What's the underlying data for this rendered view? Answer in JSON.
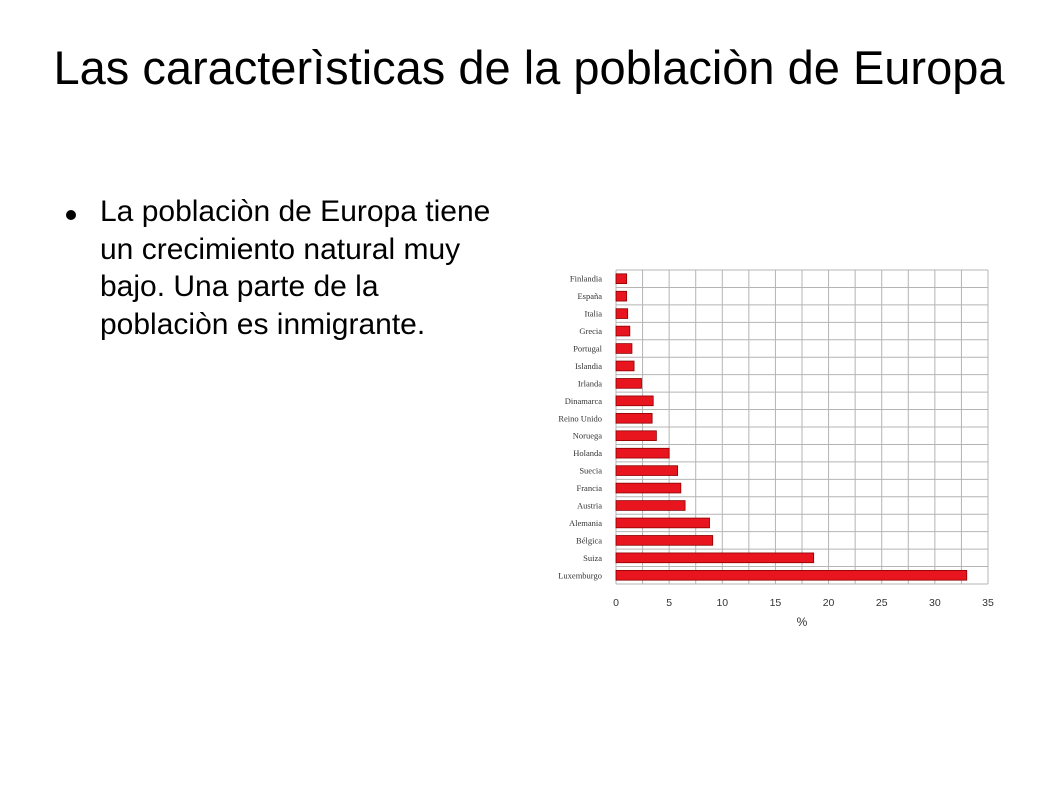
{
  "slide": {
    "title": "Las caracterìsticas de la poblaciòn de Europa",
    "bullet_text": "La poblaciòn de Europa tiene un crecimiento natural muy bajo. Una parte de la poblaciòn es inmigrante."
  },
  "colors": {
    "bar": "#e8141e",
    "bar_edge": "#8b0000",
    "grid": "#b4b4b4",
    "axis_text": "#333333"
  },
  "chart_data": {
    "type": "bar",
    "orientation": "horizontal",
    "categories": [
      "Finlandia",
      "España",
      "Italia",
      "Grecia",
      "Portugal",
      "Islandia",
      "Irlanda",
      "Dinamarca",
      "Reino Unido",
      "Noruega",
      "Holanda",
      "Suecia",
      "Francia",
      "Austria",
      "Alemania",
      "Bélgica",
      "Suiza",
      "Luxemburgo"
    ],
    "values": [
      1.0,
      1.0,
      1.1,
      1.3,
      1.5,
      1.7,
      2.4,
      3.5,
      3.4,
      3.8,
      5.0,
      5.8,
      6.1,
      6.5,
      8.8,
      9.1,
      18.6,
      33.0
    ],
    "xlim": [
      0,
      35
    ],
    "xticks": [
      0,
      5,
      10,
      15,
      20,
      25,
      30,
      35
    ],
    "xlabel": "%",
    "ylabel": "",
    "grid": true
  }
}
